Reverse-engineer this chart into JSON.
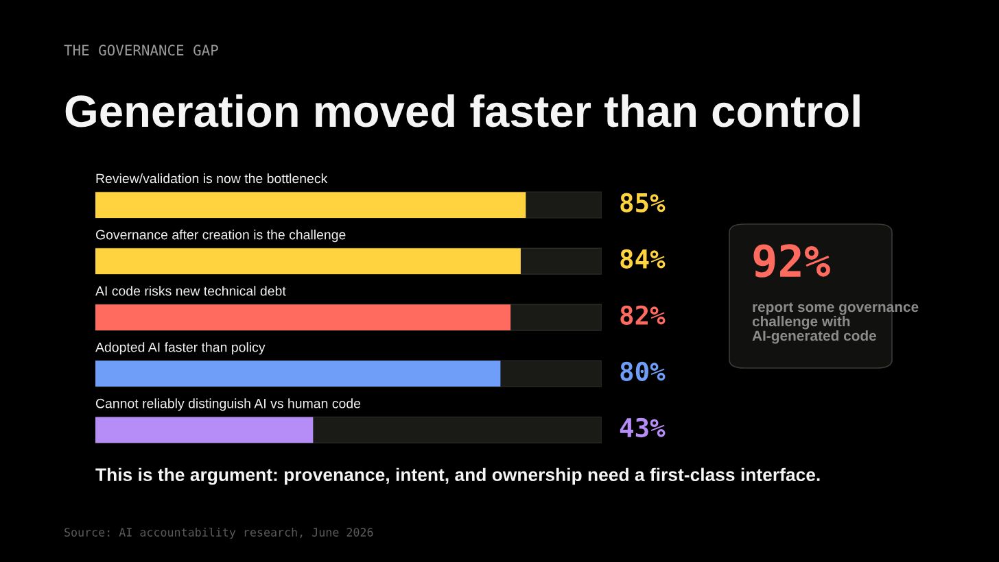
{
  "chart_data": {
    "type": "bar",
    "orientation": "horizontal",
    "title": "Generation moved faster than control",
    "subtitle": "THE GOVERNANCE GAP",
    "categories": [
      "Review/validation is now the bottleneck",
      "Governance after creation is the challenge",
      "AI code risks new technical debt",
      "Adopted AI faster than policy",
      "Cannot reliably distinguish AI vs human code"
    ],
    "values": [
      85,
      84,
      82,
      80,
      43
    ],
    "value_labels": [
      "85%",
      "84%",
      "82%",
      "80%",
      "43%"
    ],
    "colors": [
      "#ffd23f",
      "#ffd23f",
      "#ff6b5e",
      "#6e9ef8",
      "#b68cf6"
    ],
    "xlim": [
      0,
      100
    ],
    "annotations": [
      "92%",
      "report some governance challenge with AI-generated code",
      "This is the argument: provenance, intent, and ownership need a first-class interface.",
      "Source: AI accountability research, June 2026"
    ]
  }
}
